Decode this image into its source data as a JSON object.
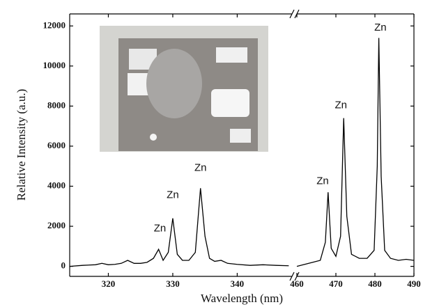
{
  "chart_data": {
    "type": "line",
    "x_label": "Wavelength (nm)",
    "y_label": "Relative Intensity (a.u.)",
    "xlim": [
      314,
      490
    ],
    "xbreak": [
      348.5,
      460
    ],
    "ylim": [
      -500,
      12600
    ],
    "xticks": [
      320,
      330,
      340,
      460,
      470,
      480,
      490
    ],
    "yticks": [
      0,
      2000,
      4000,
      6000,
      8000,
      10000,
      12000
    ],
    "color": "#000000",
    "x": [
      314,
      316,
      318,
      319,
      320,
      321,
      322,
      323,
      324,
      325,
      326,
      327,
      327.8,
      328.5,
      329.3,
      330,
      330.7,
      331.5,
      332.5,
      333.5,
      334.3,
      335,
      335.7,
      336.5,
      337.5,
      338.5,
      340,
      342,
      344,
      346,
      348,
      460,
      462,
      464,
      466,
      467.3,
      468,
      468.8,
      470,
      471.2,
      472,
      472.8,
      474,
      476,
      478,
      479.8,
      480.6,
      481,
      481.6,
      482.5,
      484,
      486,
      488,
      490
    ],
    "values": [
      0,
      50,
      80,
      150,
      80,
      100,
      150,
      300,
      150,
      150,
      200,
      400,
      850,
      300,
      700,
      2400,
      600,
      300,
      300,
      700,
      3900,
      1500,
      400,
      250,
      300,
      150,
      100,
      50,
      80,
      50,
      30,
      0,
      100,
      200,
      300,
      1200,
      3700,
      900,
      500,
      1500,
      7400,
      2500,
      600,
      400,
      400,
      800,
      5000,
      11400,
      4500,
      800,
      400,
      300,
      350,
      300
    ],
    "annotations": [
      {
        "text": "Zn",
        "x": 328,
        "y": 1880
      },
      {
        "text": "Zn",
        "x": 330,
        "y": 3550
      },
      {
        "text": "Zn",
        "x": 334.3,
        "y": 4900
      },
      {
        "text": "Zn",
        "x": 466.6,
        "y": 4240
      },
      {
        "text": "Zn",
        "x": 471.3,
        "y": 8030
      },
      {
        "text": "Zn",
        "x": 481.4,
        "y": 11900
      }
    ]
  }
}
